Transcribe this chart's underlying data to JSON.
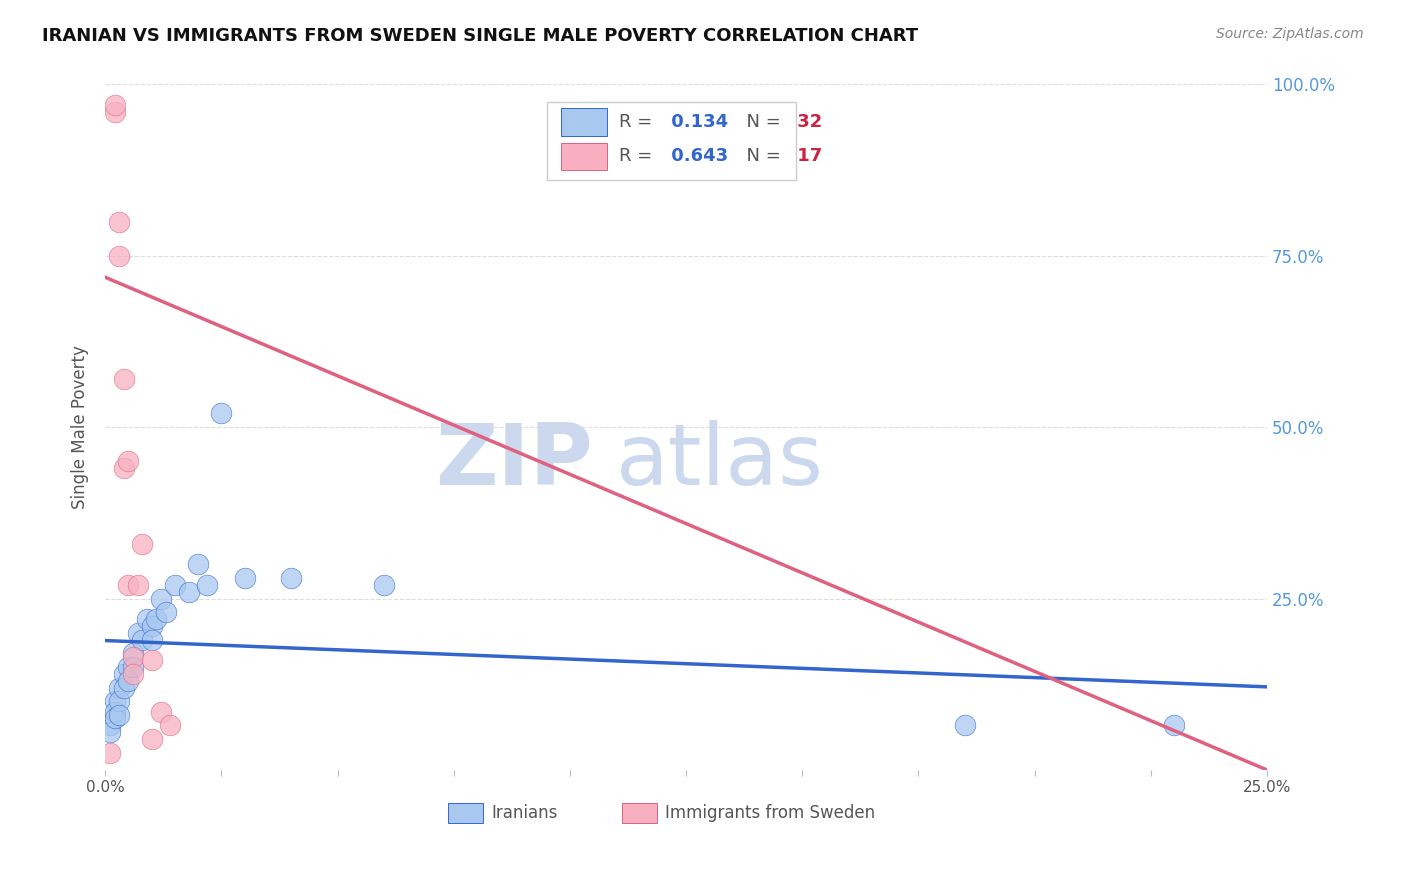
{
  "title": "IRANIAN VS IMMIGRANTS FROM SWEDEN SINGLE MALE POVERTY CORRELATION CHART",
  "source": "Source: ZipAtlas.com",
  "ylabel": "Single Male Poverty",
  "y_ticks": [
    0.0,
    0.25,
    0.5,
    0.75,
    1.0
  ],
  "y_tick_labels_right": [
    "",
    "25.0%",
    "50.0%",
    "75.0%",
    "100.0%"
  ],
  "x_ticks": [
    0.0,
    0.025,
    0.05,
    0.075,
    0.1,
    0.125,
    0.15,
    0.175,
    0.2,
    0.225,
    0.25
  ],
  "x_tick_labels": [
    "0.0%",
    "",
    "",
    "",
    "",
    "",
    "",
    "",
    "",
    "",
    "25.0%"
  ],
  "xlim": [
    0.0,
    0.25
  ],
  "ylim": [
    0.0,
    1.0
  ],
  "iranians_R": 0.134,
  "iranians_N": 32,
  "sweden_R": 0.643,
  "sweden_N": 17,
  "iranians_color": "#a8c8f0",
  "sweden_color": "#f8b0c0",
  "trendline_iranians_color": "#3366cc",
  "trendline_sweden_color": "#e06080",
  "iranians_x": [
    0.001,
    0.001,
    0.002,
    0.002,
    0.002,
    0.003,
    0.003,
    0.003,
    0.004,
    0.004,
    0.005,
    0.005,
    0.006,
    0.006,
    0.007,
    0.008,
    0.009,
    0.01,
    0.01,
    0.011,
    0.012,
    0.013,
    0.015,
    0.018,
    0.02,
    0.022,
    0.025,
    0.03,
    0.04,
    0.06,
    0.185,
    0.23
  ],
  "iranians_y": [
    0.065,
    0.055,
    0.1,
    0.085,
    0.075,
    0.12,
    0.1,
    0.08,
    0.14,
    0.12,
    0.15,
    0.13,
    0.17,
    0.15,
    0.2,
    0.19,
    0.22,
    0.21,
    0.19,
    0.22,
    0.25,
    0.23,
    0.27,
    0.26,
    0.3,
    0.27,
    0.52,
    0.28,
    0.28,
    0.27,
    0.065,
    0.065
  ],
  "sweden_x": [
    0.001,
    0.002,
    0.002,
    0.003,
    0.003,
    0.004,
    0.004,
    0.005,
    0.005,
    0.006,
    0.006,
    0.007,
    0.008,
    0.01,
    0.01,
    0.012,
    0.014
  ],
  "sweden_y": [
    0.025,
    0.96,
    0.97,
    0.8,
    0.75,
    0.57,
    0.44,
    0.27,
    0.45,
    0.165,
    0.14,
    0.27,
    0.33,
    0.045,
    0.16,
    0.085,
    0.065
  ],
  "watermark_zip": "ZIP",
  "watermark_atlas": "atlas",
  "watermark_color": "#ccd8ee",
  "grid_color": "#dddddd",
  "background_color": "#ffffff"
}
